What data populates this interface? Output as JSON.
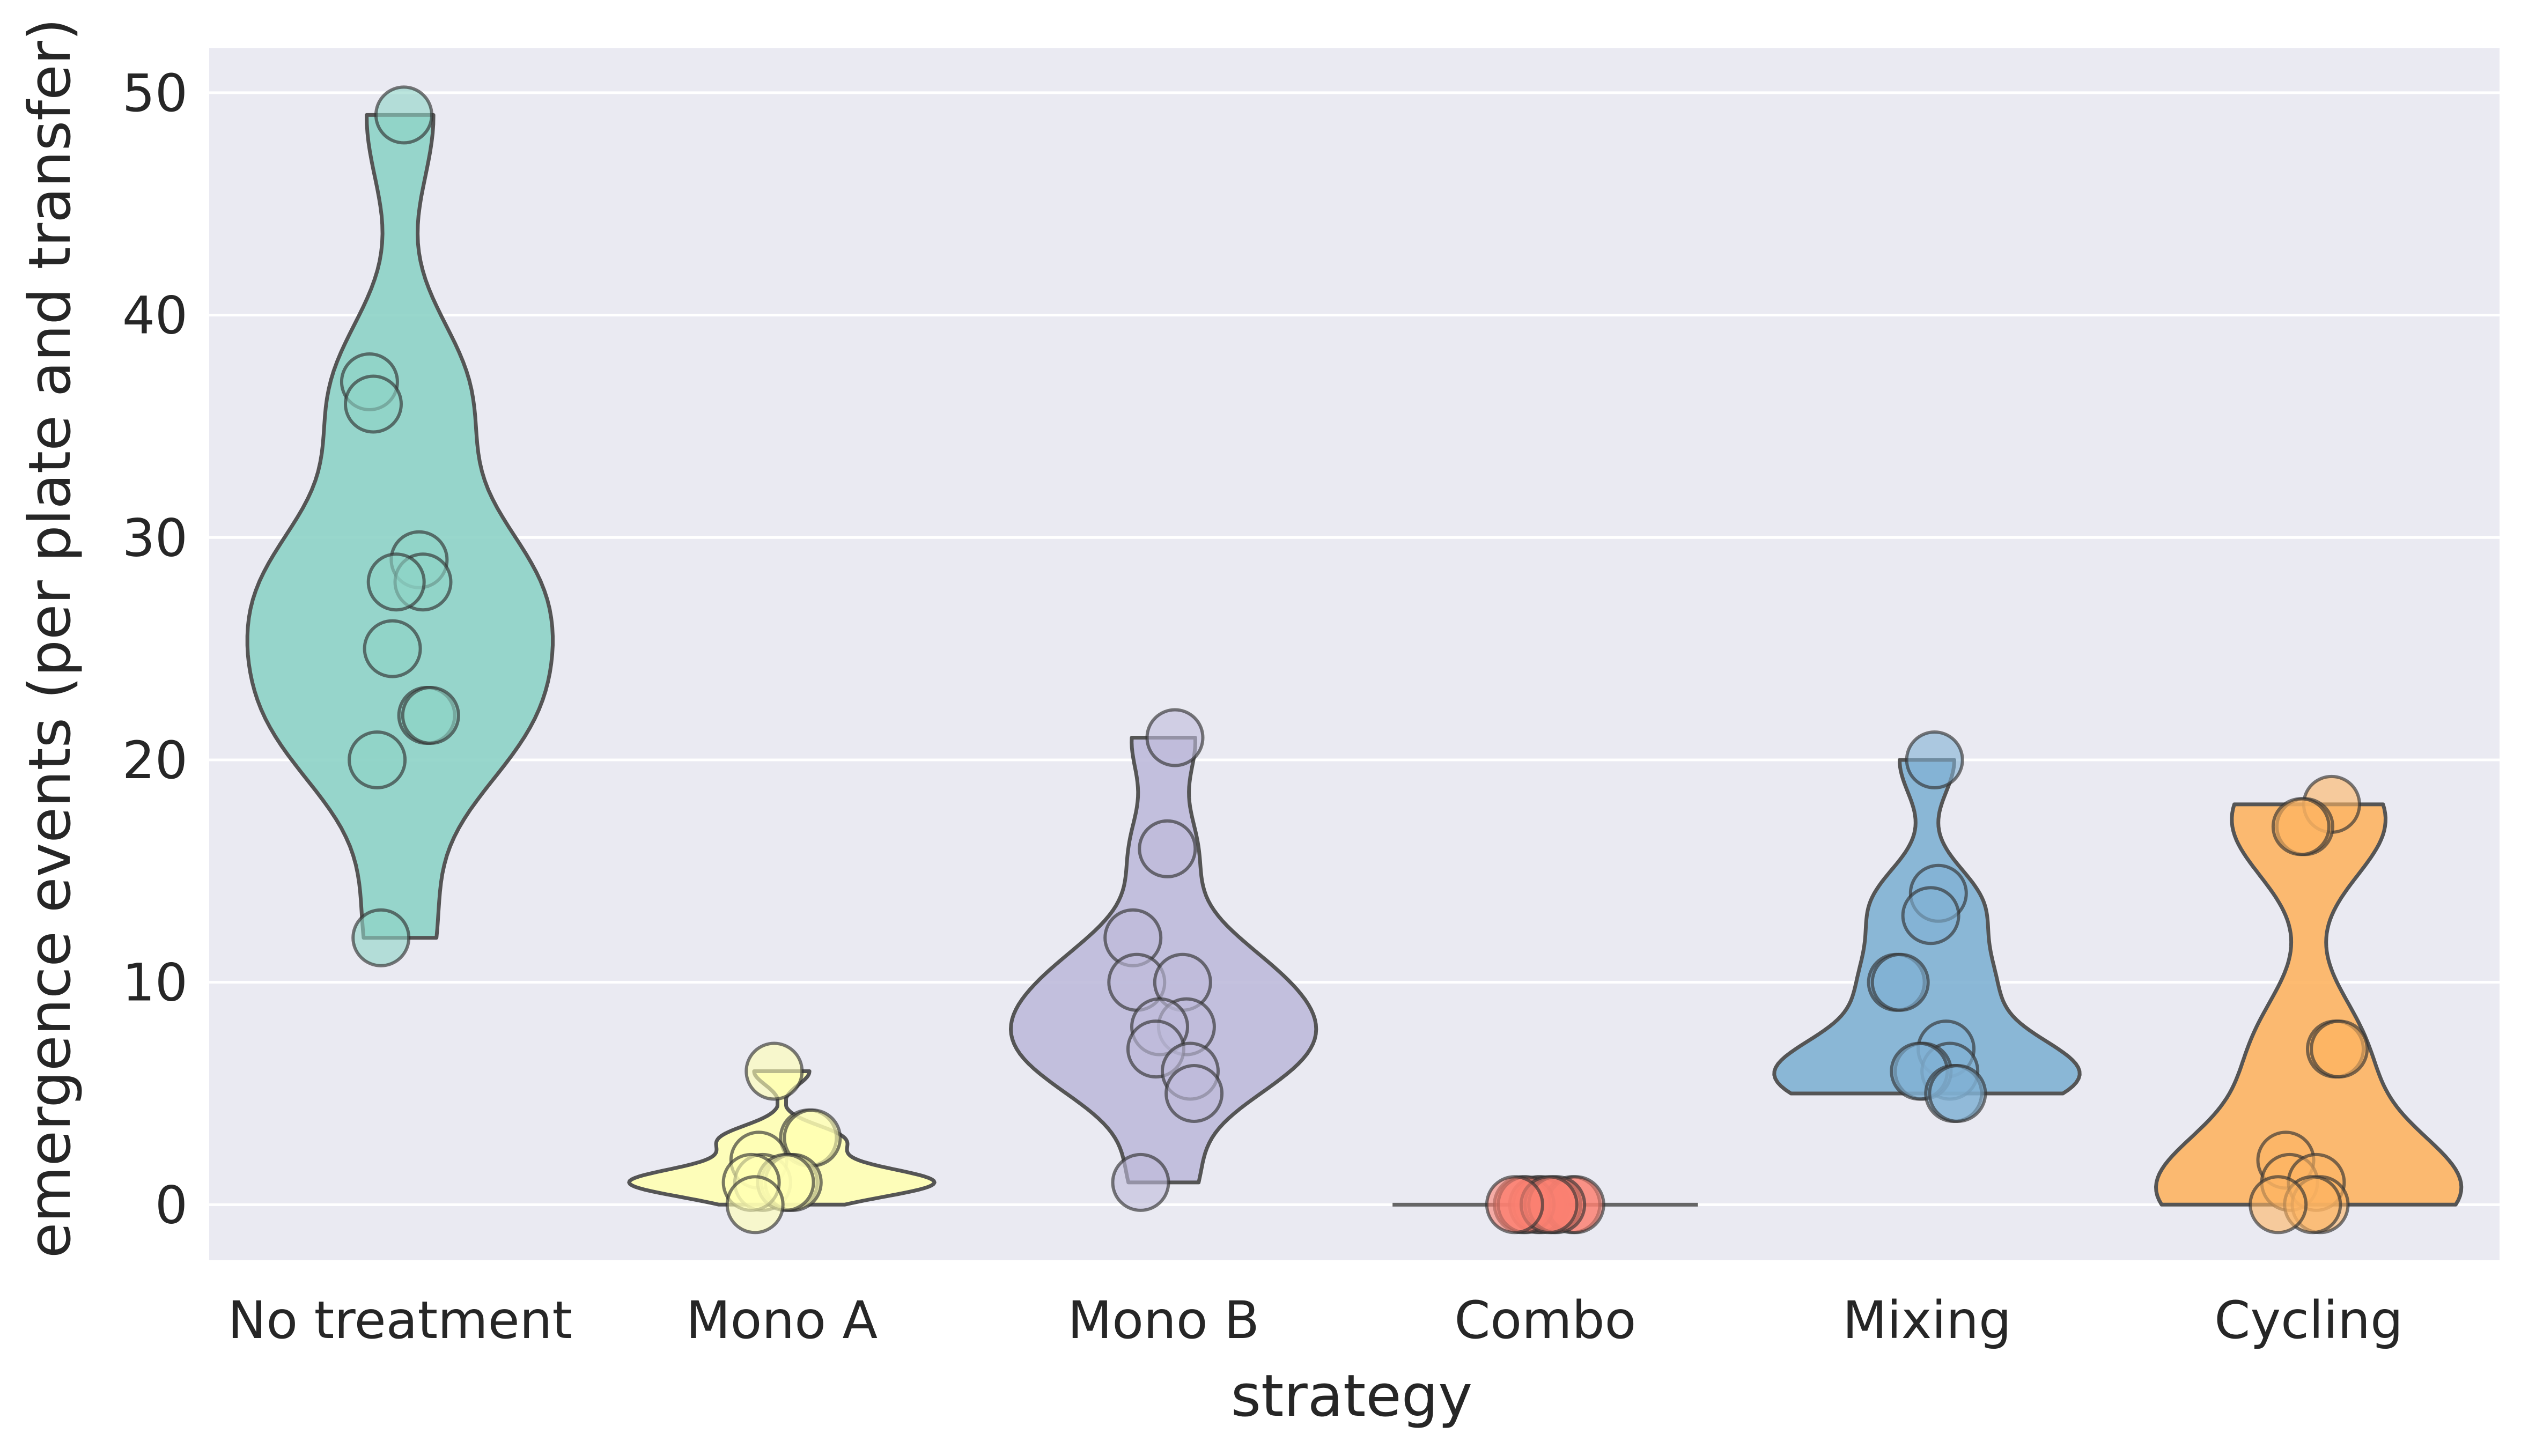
{
  "chart_data": {
    "type": "violin",
    "xlabel": "strategy",
    "ylabel": "emergence events (per plate and transfer)",
    "categories": [
      "No treatment",
      "Mono A",
      "Mono B",
      "Combo",
      "Mixing",
      "Cycling"
    ],
    "colors": [
      "#8dd3c7",
      "#ffffb3",
      "#bebada",
      "#fb8072",
      "#80b1d3",
      "#fdb462"
    ],
    "ylim": [
      -2.5,
      52
    ],
    "yticks": [
      0,
      10,
      20,
      30,
      40,
      50
    ],
    "grid": true,
    "background": "#eaeaf2",
    "series": [
      {
        "values": [
          49,
          37,
          36,
          29,
          28,
          28,
          25,
          22,
          22,
          20,
          12
        ]
      },
      {
        "values": [
          6,
          3,
          3,
          2,
          1,
          1,
          1,
          1,
          1,
          0
        ]
      },
      {
        "values": [
          21,
          16,
          12,
          10,
          10,
          8,
          8,
          7,
          6,
          5,
          1
        ]
      },
      {
        "values": [
          0,
          0,
          0,
          0,
          0,
          0,
          0,
          0,
          0,
          0
        ]
      },
      {
        "values": [
          20,
          14,
          13,
          10,
          10,
          7,
          6,
          6,
          6,
          5,
          5
        ]
      },
      {
        "values": [
          18,
          17,
          17,
          7,
          7,
          2,
          1,
          1,
          0,
          0,
          0
        ]
      }
    ]
  }
}
